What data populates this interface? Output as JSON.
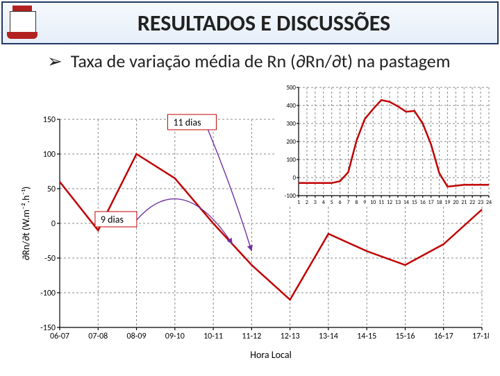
{
  "header": {
    "title": "RESULTADOS E DISCUSSÕES"
  },
  "subtitle": {
    "marker": "➢",
    "text": "Taxa de variação média de Rn (∂Rn/∂t) na pastagem"
  },
  "main_chart": {
    "type": "line",
    "line_color": "#c00000",
    "line_width": 2.5,
    "background_color": "#ffffff",
    "grid_color": "#888888",
    "grid_dash": "3 3",
    "ylim": [
      -150,
      150
    ],
    "ytick_step": 50,
    "yticks": [
      -150,
      -100,
      -50,
      0,
      50,
      100,
      150
    ],
    "ytitle": "∂Rn/∂t (W.m⁻².h⁻¹)",
    "x_categories": [
      "06-07",
      "07-08",
      "08-09",
      "09-10",
      "10-11",
      "11-12",
      "12-13",
      "13-14",
      "14-15",
      "15-16",
      "16-17",
      "17-18"
    ],
    "values": [
      60,
      -10,
      100,
      65,
      0,
      -60,
      -110,
      -15,
      -40,
      -60,
      -30,
      20
    ],
    "xtitle": "Hora Local",
    "title_fontsize": 14,
    "label_fontsize": 12,
    "annotations": {
      "box1": {
        "label": "11 dias",
        "arrow_from_idx": 3,
        "arrow_color": "#7030a0"
      },
      "box2": {
        "label": "9 dias",
        "arrow_from_idx": 3,
        "arrow_color": "#7030a0"
      }
    }
  },
  "inset_chart": {
    "type": "line",
    "line_color": "#c00000",
    "line_width": 2.5,
    "background_color": "#ffffff",
    "grid_color": "#888888",
    "grid_dash": "3 3",
    "ylim": [
      -100,
      500
    ],
    "ytick_step": 100,
    "yticks": [
      -100,
      0,
      100,
      200,
      300,
      400,
      500
    ],
    "x_categories": [
      "1",
      "2",
      "3",
      "4",
      "5",
      "6",
      "7",
      "8",
      "9",
      "10",
      "11",
      "12",
      "13",
      "14",
      "15",
      "16",
      "17",
      "18",
      "19",
      "20",
      "21",
      "22",
      "23",
      "24"
    ],
    "values": [
      -30,
      -30,
      -30,
      -30,
      -30,
      -20,
      30,
      205,
      325,
      380,
      430,
      420,
      395,
      365,
      370,
      300,
      185,
      25,
      -50,
      -45,
      -40,
      -40,
      -40,
      -40
    ],
    "label_fontsize": 9
  }
}
